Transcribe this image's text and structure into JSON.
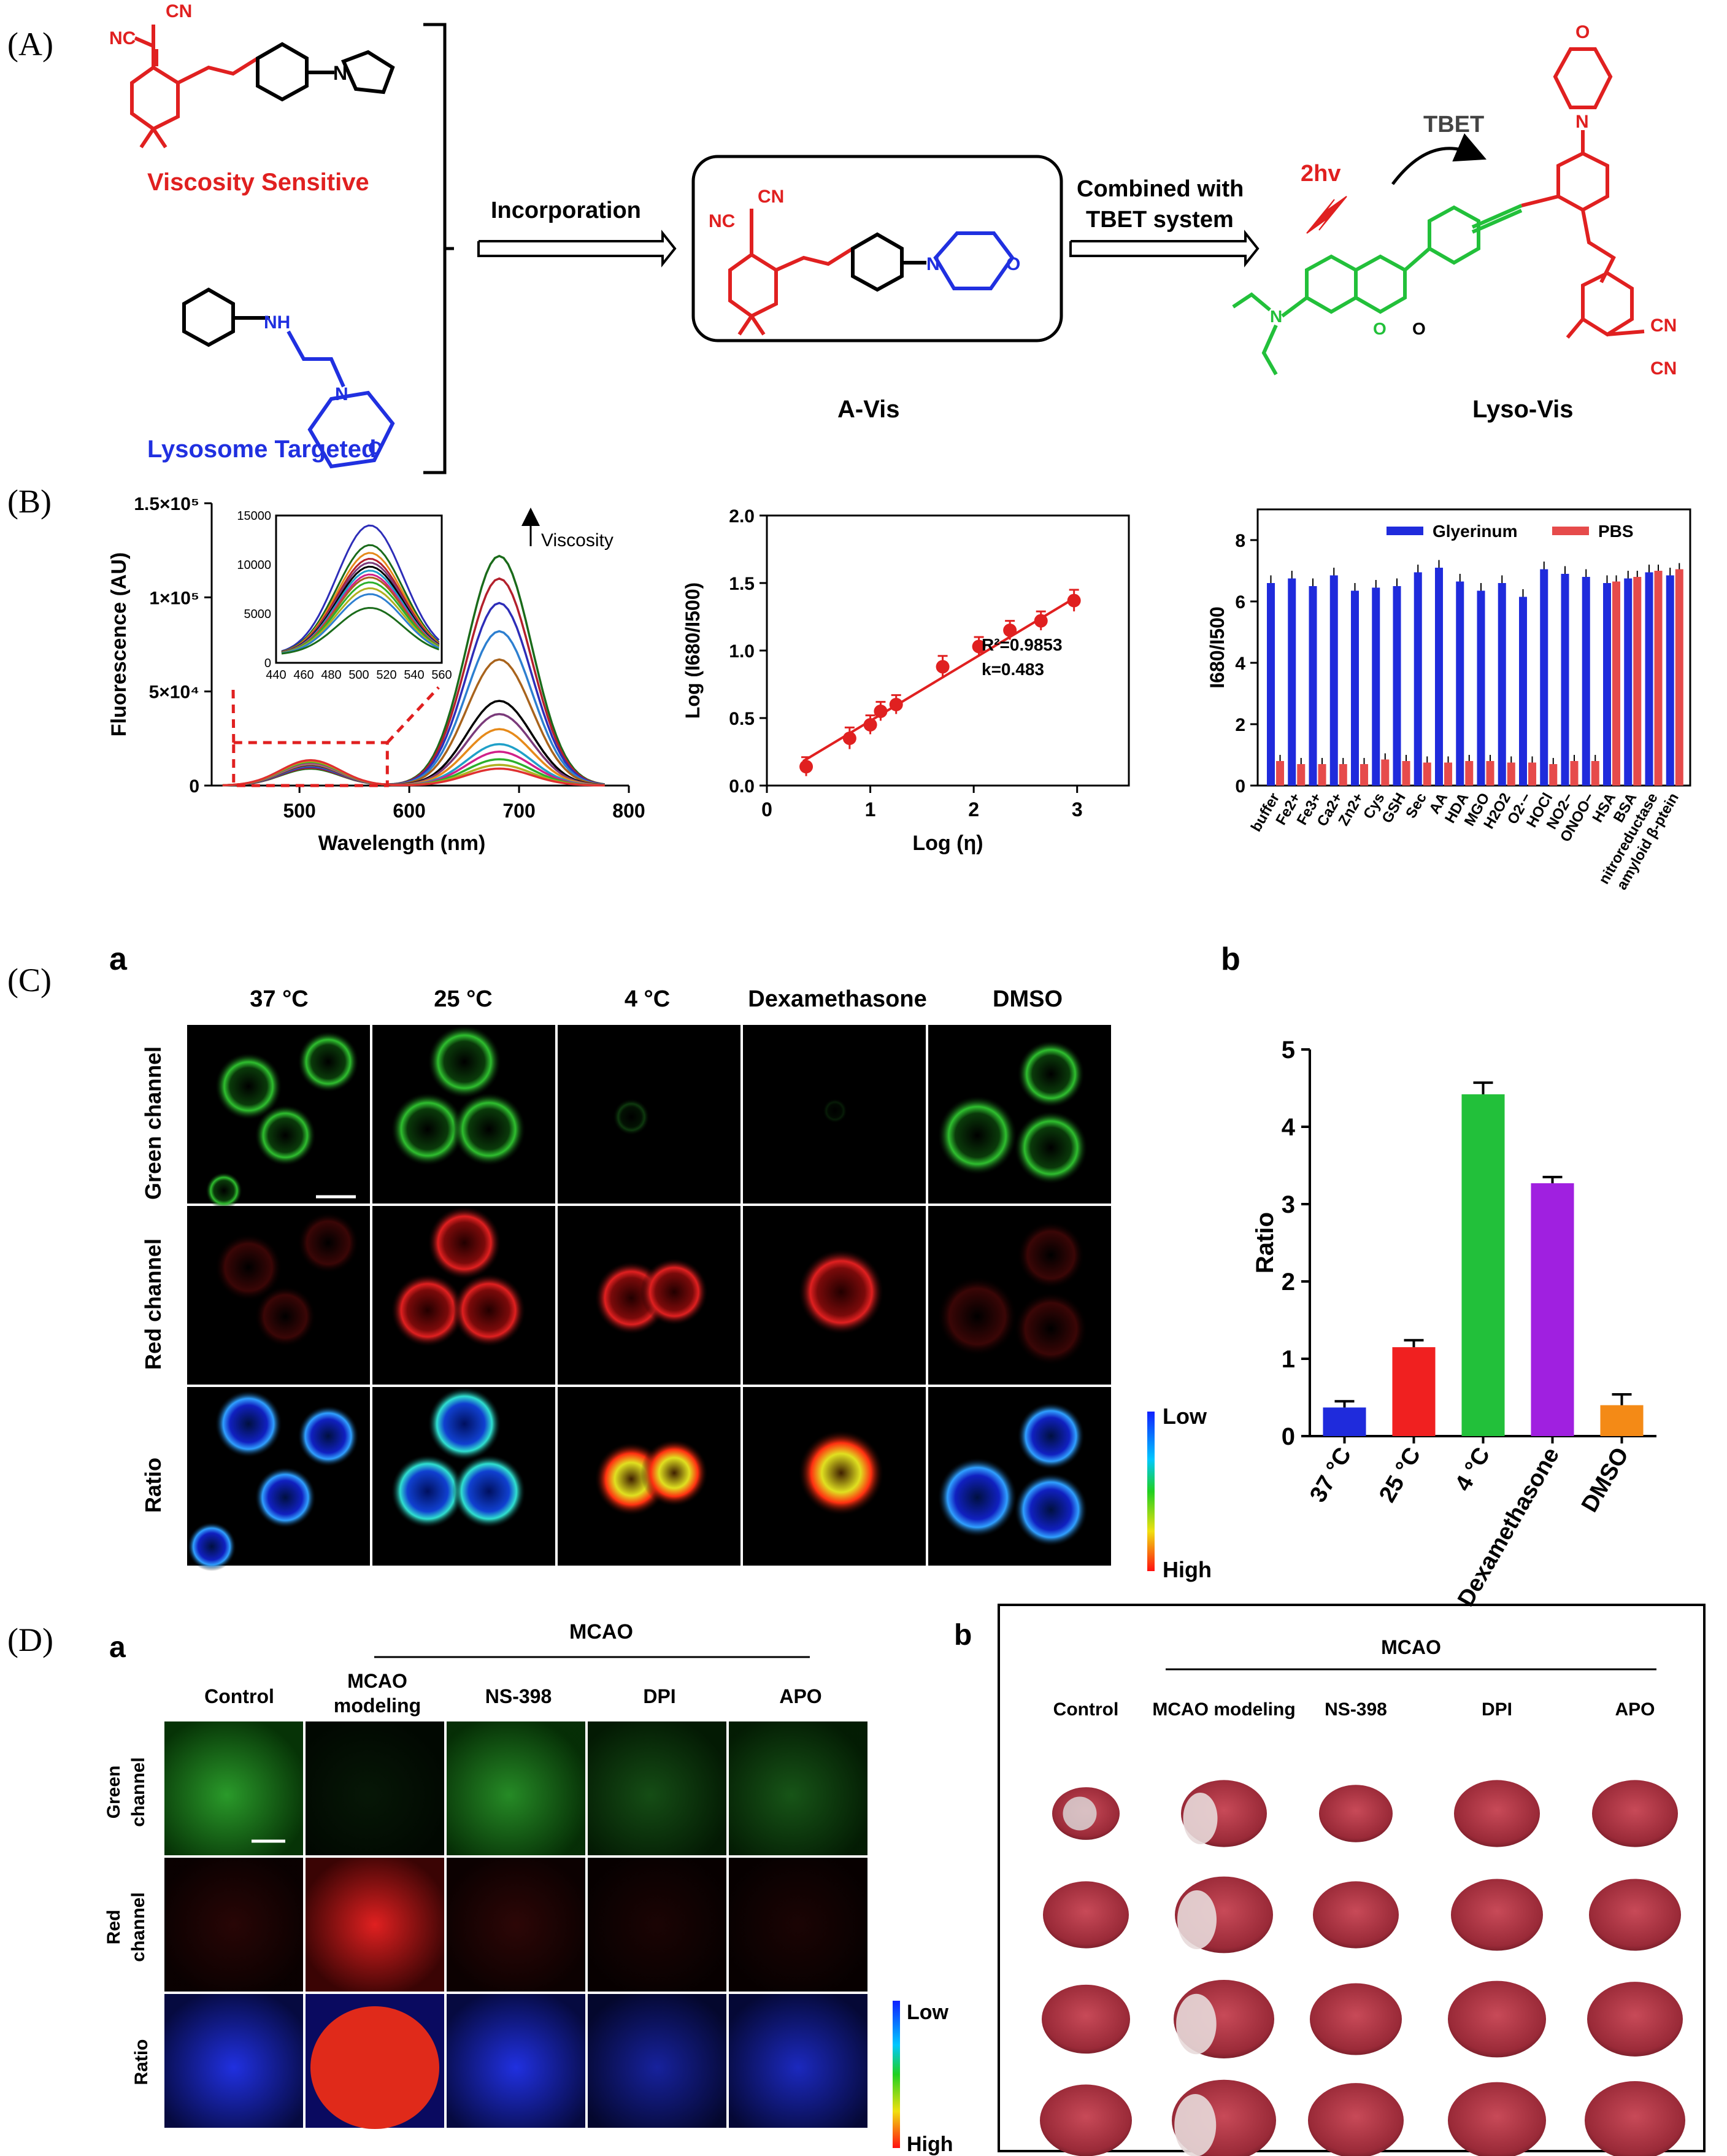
{
  "panels": {
    "A": {
      "label": "(A)",
      "viscosity_sensitive": "Viscosity Sensitive",
      "lysosome_targeted": "Lysosome Targeted",
      "arrow1": "Incorporation",
      "arrow2_line1": "Combined with",
      "arrow2_line2": "TBET system",
      "product1": "A-Vis",
      "product2": "Lyso-Vis",
      "tbet": "TBET",
      "twohv": "2hv",
      "atoms": {
        "nc": "NC",
        "cn": "CN",
        "n": "N",
        "o": "O",
        "nh": "NH"
      }
    },
    "B": {
      "label": "(B)",
      "inset_ticks_y": [
        "15000",
        "10000",
        "5000",
        "0"
      ],
      "inset_ticks_x": [
        "440",
        "460",
        "480",
        "500",
        "520",
        "540",
        "560"
      ]
    },
    "C": {
      "label": "(C)",
      "sub_a": "a",
      "sub_b": "b",
      "col_headers": [
        "37 °C",
        "25 °C",
        "4 °C",
        "Dexamethasone",
        "DMSO"
      ],
      "row_labels": [
        "Green channel",
        "Red channel",
        "Ratio"
      ],
      "scale_low": "Low",
      "scale_high": "High"
    },
    "D": {
      "label": "(D)",
      "sub_a": "a",
      "sub_b": "b",
      "group_label": "MCAO",
      "col_headers_a": [
        "Control",
        "MCAO",
        "NS-398",
        "DPI",
        "APO"
      ],
      "col_header_a2_line2": "modeling",
      "row_labels": [
        "Green",
        "channel",
        "Red",
        "channel",
        "Ratio"
      ],
      "scale_low": "Low",
      "scale_high": "High",
      "col_headers_b": [
        "Control",
        "MCAO modeling",
        "NS-398",
        "DPI",
        "APO"
      ],
      "group_label_b": "MCAO"
    }
  },
  "chart_data": [
    {
      "id": "B1",
      "type": "line",
      "title": "",
      "xlabel": "Wavelength (nm)",
      "ylabel": "Fluorescence (AU)",
      "xlim": [
        420,
        800
      ],
      "ylim": [
        0,
        150000
      ],
      "x_ticks": [
        "500",
        "600",
        "700",
        "800"
      ],
      "y_ticks": [
        "0",
        "5×10⁴",
        "1×10⁵",
        "1.5×10⁵"
      ],
      "annotation": "Viscosity",
      "series_colors": [
        "#1a6b1a",
        "#b3202c",
        "#2d2db8",
        "#2d7fd0",
        "#a8631c",
        "#000000",
        "#7a3a7a",
        "#e68a1a",
        "#1fa0c8",
        "#d0208a",
        "#2bb02b",
        "#b0b020",
        "#e03030"
      ],
      "series_peaks": [
        122000,
        110000,
        97000,
        82000,
        67000,
        45000,
        38000,
        30000,
        22000,
        18000,
        14000,
        11000,
        9000
      ],
      "series_peaks_500": [
        9000,
        9500,
        10000,
        10500,
        10800,
        11000,
        11200,
        11500,
        11800,
        12000,
        12500,
        13000,
        13500
      ]
    },
    {
      "id": "B2",
      "type": "scatter",
      "xlabel": "Log (η)",
      "ylabel": "Log (I680/I500)",
      "xlim": [
        0,
        3.5
      ],
      "ylim": [
        0,
        2.0
      ],
      "x_ticks": [
        "0",
        "1",
        "2",
        "3"
      ],
      "y_ticks": [
        "0.0",
        "0.5",
        "1.0",
        "1.5",
        "2.0"
      ],
      "x": [
        0.38,
        0.8,
        1.0,
        1.1,
        1.25,
        1.7,
        2.05,
        2.35,
        2.65,
        2.97
      ],
      "y": [
        0.14,
        0.35,
        0.45,
        0.55,
        0.6,
        0.88,
        1.03,
        1.15,
        1.22,
        1.37
      ],
      "err": [
        0.07,
        0.08,
        0.07,
        0.07,
        0.07,
        0.08,
        0.07,
        0.07,
        0.07,
        0.08
      ],
      "fit": [
        [
          0.35,
          0.18
        ],
        [
          3.0,
          1.4
        ]
      ],
      "r2_label": "R²=0.9853",
      "k_label": "k=0.483"
    },
    {
      "id": "B3",
      "type": "bar",
      "ylabel": "I680/I500",
      "ylim": [
        0,
        9
      ],
      "y_ticks": [
        "0",
        "2",
        "4",
        "6",
        "8"
      ],
      "legend": [
        "Glyerinum",
        "PBS"
      ],
      "colors": [
        "#1f2bdc",
        "#e64b4b"
      ],
      "categories": [
        "buffer",
        "Fe2+",
        "Fe3+",
        "Ca2+",
        "Zn2+",
        "Cys",
        "GSH",
        "Sec",
        "AA",
        "HDA",
        "MGO",
        "H2O2",
        "O2·−",
        "HOCl",
        "NO2−",
        "ONOO−",
        "HSA",
        "BSA",
        "nitroreductase",
        "amyloid β-ptein"
      ],
      "glycerol": [
        6.6,
        6.75,
        6.5,
        6.85,
        6.35,
        6.45,
        6.5,
        6.95,
        7.1,
        6.65,
        6.35,
        6.6,
        6.15,
        7.05,
        6.9,
        6.8,
        6.6,
        6.75,
        6.95,
        6.85
      ],
      "pbs": [
        0.8,
        0.7,
        0.7,
        0.7,
        0.7,
        0.85,
        0.8,
        0.75,
        0.75,
        0.8,
        0.8,
        0.75,
        0.75,
        0.7,
        0.8,
        0.8,
        6.65,
        6.8,
        7.0,
        7.05
      ]
    },
    {
      "id": "Cb",
      "type": "bar",
      "ylabel": "Ratio",
      "ylim": [
        0,
        5
      ],
      "y_ticks": [
        "0",
        "1",
        "2",
        "3",
        "4",
        "5"
      ],
      "categories": [
        "37 °C",
        "25 °C",
        "4 °C",
        "Dexamethasone",
        "DMSO"
      ],
      "values": [
        0.37,
        1.15,
        4.42,
        3.27,
        0.4
      ],
      "errors": [
        0.08,
        0.09,
        0.15,
        0.08,
        0.14
      ],
      "colors": [
        "#1f2bdc",
        "#f02020",
        "#22c03a",
        "#a020e0",
        "#f48a16"
      ]
    }
  ]
}
